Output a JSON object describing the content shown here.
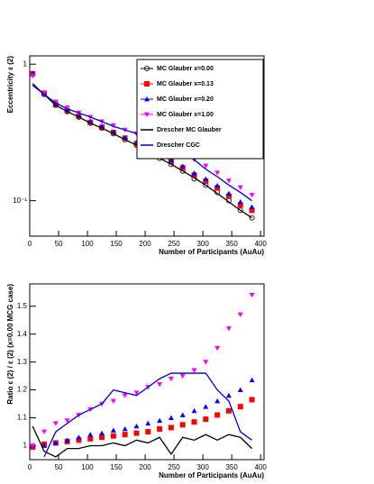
{
  "chart_data": [
    {
      "type": "scatter",
      "ylabel": "Eccentricity ε (2)",
      "xlabel": "Number of Participants (AuAu)",
      "xlim": [
        0,
        406
      ],
      "xticks": [
        0,
        50,
        100,
        150,
        200,
        250,
        300,
        350,
        400
      ],
      "ylim": [
        0.055,
        1.15
      ],
      "log_y": true,
      "yticks": [
        {
          "value": 0.1,
          "label": "10⁻¹"
        },
        1
      ],
      "legend": "top-right",
      "x": [
        5,
        25,
        45,
        65,
        85,
        105,
        125,
        145,
        165,
        185,
        205,
        225,
        245,
        265,
        285,
        305,
        325,
        345,
        365,
        385
      ],
      "series": [
        {
          "name": "MC Glauber x=0.00",
          "color": "#000000",
          "marker": "circle-open",
          "values": [
            0.85,
            0.6,
            0.5,
            0.45,
            0.41,
            0.37,
            0.34,
            0.31,
            0.28,
            0.255,
            0.23,
            0.205,
            0.185,
            0.165,
            0.145,
            0.13,
            0.115,
            0.1,
            0.085,
            0.075
          ]
        },
        {
          "name": "MC Glauber x=0.13",
          "color": "#ff0000",
          "marker": "square",
          "values": [
            0.85,
            0.61,
            0.505,
            0.455,
            0.415,
            0.375,
            0.345,
            0.316,
            0.287,
            0.262,
            0.238,
            0.213,
            0.193,
            0.174,
            0.154,
            0.139,
            0.124,
            0.108,
            0.093,
            0.085
          ]
        },
        {
          "name": "MC Glauber x=0.20",
          "color": "#0000ff",
          "marker": "triangle-up",
          "values": [
            0.86,
            0.61,
            0.51,
            0.46,
            0.42,
            0.38,
            0.35,
            0.32,
            0.29,
            0.266,
            0.242,
            0.218,
            0.198,
            0.179,
            0.159,
            0.144,
            0.129,
            0.113,
            0.098,
            0.09
          ]
        },
        {
          "name": "MC Glauber x=1.00",
          "color": "#ff00ff",
          "marker": "triangle-down",
          "values": [
            0.82,
            0.62,
            0.53,
            0.48,
            0.44,
            0.41,
            0.38,
            0.355,
            0.33,
            0.31,
            0.285,
            0.265,
            0.24,
            0.22,
            0.2,
            0.18,
            0.16,
            0.14,
            0.125,
            0.11
          ]
        },
        {
          "name": "Drescher MC Glauber",
          "color": "#000000",
          "values": [
            0.72,
            0.6,
            0.5,
            0.45,
            0.41,
            0.37,
            0.34,
            0.31,
            0.28,
            0.255,
            0.23,
            0.205,
            0.185,
            0.165,
            0.147,
            0.13,
            0.113,
            0.098,
            0.085,
            0.075
          ]
        },
        {
          "name": "Drescher CGC",
          "color": "#0000cc",
          "values": [
            0.7,
            0.6,
            0.52,
            0.47,
            0.44,
            0.41,
            0.38,
            0.35,
            0.33,
            0.31,
            0.29,
            0.27,
            0.24,
            0.22,
            0.2,
            0.17,
            0.15,
            0.13,
            0.115,
            0.1
          ]
        }
      ]
    },
    {
      "type": "scatter",
      "ylabel": "Ratio ε (2) / ε (2) (x=0.00 MCG case)",
      "xlabel": "Number of Participants (AuAu)",
      "xlim": [
        0,
        406
      ],
      "xticks": [
        0,
        50,
        100,
        150,
        200,
        250,
        300,
        350,
        400
      ],
      "ylim": [
        0.95,
        1.58
      ],
      "yticks": [
        1,
        1.1,
        1.2,
        1.3,
        1.4,
        1.5
      ],
      "x": [
        5,
        25,
        45,
        65,
        85,
        105,
        125,
        145,
        165,
        185,
        205,
        225,
        245,
        265,
        285,
        305,
        325,
        345,
        365,
        385
      ],
      "series": [
        {
          "color": "#ff0000",
          "marker": "square",
          "values": [
            0.995,
            1.005,
            1.01,
            1.015,
            1.02,
            1.025,
            1.03,
            1.035,
            1.04,
            1.045,
            1.05,
            1.06,
            1.065,
            1.075,
            1.085,
            1.095,
            1.11,
            1.125,
            1.14,
            1.165
          ]
        },
        {
          "color": "#0000ff",
          "marker": "triangle-up",
          "values": [
            1.0,
            1.0,
            1.01,
            1.02,
            1.03,
            1.04,
            1.045,
            1.055,
            1.06,
            1.07,
            1.08,
            1.09,
            1.1,
            1.11,
            1.125,
            1.14,
            1.16,
            1.18,
            1.2,
            1.235
          ]
        },
        {
          "color": "#ff00ff",
          "marker": "triangle-down",
          "values": [
            1.0,
            1.05,
            1.08,
            1.09,
            1.11,
            1.13,
            1.15,
            1.16,
            1.18,
            1.19,
            1.21,
            1.22,
            1.24,
            1.25,
            1.27,
            1.3,
            1.35,
            1.42,
            1.47,
            1.54
          ]
        },
        {
          "color": "#000000",
          "values": [
            1.07,
            0.98,
            0.96,
            0.99,
            0.99,
            1.0,
            1.0,
            1.01,
            1.0,
            1.02,
            1.01,
            1.03,
            0.97,
            1.03,
            1.02,
            1.04,
            1.02,
            1.04,
            1.03,
            0.99
          ]
        },
        {
          "color": "#0000cc",
          "values": [
            null,
            0.96,
            1.05,
            1.08,
            1.11,
            1.13,
            1.15,
            1.2,
            1.19,
            1.18,
            1.21,
            1.24,
            1.26,
            1.26,
            1.26,
            1.26,
            1.2,
            1.16,
            1.05,
            1.02
          ]
        }
      ]
    }
  ]
}
